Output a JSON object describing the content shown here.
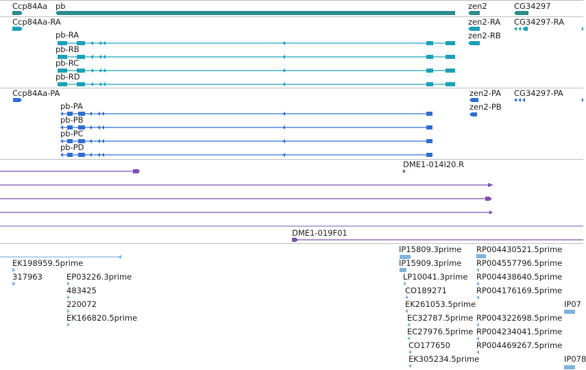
{
  "colors": {
    "gene": "#2a8c8c",
    "transcript": "#1aa0b8",
    "protein": "#2d6fd0",
    "clone": "#7b4fb2",
    "est": "#7fb3dc",
    "separator": "#bdbdbd"
  },
  "gene_track": {
    "labels": [
      "Ccp84Aa",
      "pb",
      "zen2",
      "CG34297"
    ]
  },
  "transcript_track": {
    "labels": [
      "Ccp84Aa-RA",
      "pb-RA",
      "pb-RB",
      "pb-RC",
      "pb-RD",
      "zen2-RA",
      "zen2-RB",
      "CG34297-RA"
    ]
  },
  "protein_track": {
    "labels": [
      "Ccp84Aa-PA",
      "pb-PA",
      "pb-PB",
      "pb-PC",
      "pb-PD",
      "zen2-PA",
      "zen2-PB",
      "CG34297-PA"
    ]
  },
  "clone_track": {
    "labels": [
      "DME1-014I20.R",
      "DME1-019F01"
    ]
  },
  "est_track": {
    "labels": [
      "EK198959.5prime",
      "317963",
      "EP03226.3prime",
      "483425",
      "220072",
      "EK166820.5prime",
      "IP15809.3prime",
      "IP15909.3prime",
      "LP10041.3prime",
      "CO189271",
      "EK261053.5prime",
      "EC32787.5prime",
      "EC27976.5prime",
      "CO177650",
      "EK305234.5prime",
      "RP004430521.5prime",
      "RP004557796.5prime",
      "RP004438640.5prime",
      "RP004176169.5prime",
      "RP004322698.5prime",
      "RP004234041.5prime",
      "RP004469267.5prime",
      "IP07",
      "IP078"
    ]
  }
}
